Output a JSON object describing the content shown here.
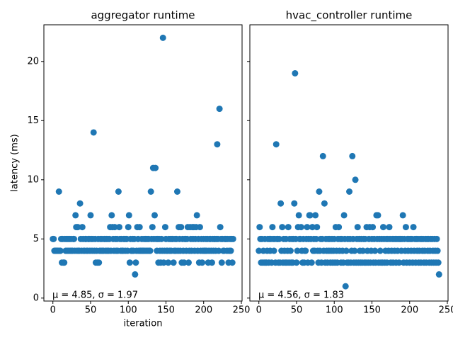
{
  "chart_data": [
    {
      "type": "scatter",
      "title": "aggregator runtime",
      "xlabel": "iteration",
      "ylabel": "latency (ms)",
      "annotation": "μ = 4.85, σ = 1.97",
      "color": "#1f77b4",
      "x": [
        0,
        1,
        2,
        3,
        4,
        5,
        6,
        7,
        8,
        9,
        10,
        11,
        12,
        13,
        14,
        15,
        16,
        17,
        18,
        19,
        20,
        21,
        22,
        23,
        24,
        25,
        26,
        27,
        28,
        29,
        30,
        31,
        32,
        33,
        34,
        35,
        36,
        37,
        38,
        39,
        40,
        41,
        42,
        43,
        44,
        45,
        46,
        47,
        48,
        49,
        50,
        51,
        52,
        53,
        54,
        55,
        56,
        57,
        58,
        59,
        60,
        61,
        62,
        63,
        64,
        65,
        66,
        67,
        68,
        69,
        70,
        71,
        72,
        73,
        74,
        75,
        76,
        77,
        78,
        79,
        80,
        81,
        82,
        83,
        84,
        85,
        86,
        87,
        88,
        89,
        90,
        91,
        92,
        93,
        94,
        95,
        96,
        97,
        98,
        99,
        100,
        101,
        102,
        103,
        104,
        105,
        106,
        107,
        108,
        109,
        110,
        111,
        112,
        113,
        114,
        115,
        116,
        117,
        118,
        119,
        120,
        121,
        122,
        123,
        124,
        125,
        126,
        127,
        128,
        129,
        130,
        131,
        132,
        133,
        134,
        135,
        136,
        137,
        138,
        139,
        140,
        141,
        142,
        143,
        144,
        145,
        146,
        147,
        148,
        149,
        150,
        151,
        152,
        153,
        154,
        155,
        156,
        157,
        158,
        159,
        160,
        161,
        162,
        163,
        164,
        165,
        166,
        167,
        168,
        169,
        170,
        171,
        172,
        173,
        174,
        175,
        176,
        177,
        178,
        179,
        180,
        181,
        182,
        183,
        184,
        185,
        186,
        187,
        188,
        189,
        190,
        191,
        192,
        193,
        194,
        195,
        196,
        197,
        198,
        199,
        200,
        201,
        202,
        203,
        204,
        205,
        206,
        207,
        208,
        209,
        210,
        211,
        212,
        213,
        214,
        215,
        216,
        217,
        218,
        219,
        220,
        221,
        222,
        223,
        224,
        225,
        226,
        227,
        228,
        229,
        230,
        231,
        232,
        233,
        234,
        235,
        236,
        237,
        238,
        239
      ],
      "values": [
        5,
        5,
        4,
        4,
        4,
        4,
        4,
        4,
        9,
        4,
        4,
        5,
        3,
        5,
        3,
        3,
        5,
        4,
        5,
        4,
        5,
        4,
        5,
        4,
        5,
        4,
        4,
        5,
        5,
        4,
        7,
        6,
        4,
        6,
        4,
        4,
        8,
        5,
        4,
        6,
        5,
        4,
        4,
        5,
        5,
        4,
        4,
        5,
        5,
        4,
        7,
        5,
        4,
        5,
        14,
        4,
        5,
        3,
        4,
        3,
        5,
        3,
        4,
        5,
        4,
        5,
        4,
        4,
        5,
        5,
        4,
        5,
        4,
        5,
        4,
        5,
        6,
        4,
        7,
        6,
        5,
        4,
        6,
        5,
        4,
        5,
        4,
        9,
        6,
        5,
        4,
        5,
        4,
        4,
        5,
        5,
        4,
        5,
        5,
        4,
        6,
        7,
        3,
        5,
        4,
        4,
        5,
        4,
        5,
        2,
        3,
        4,
        6,
        5,
        4,
        6,
        4,
        4,
        5,
        4,
        4,
        5,
        4,
        5,
        4,
        5,
        4,
        5,
        4,
        4,
        9,
        5,
        6,
        11,
        5,
        7,
        11,
        5,
        4,
        5,
        3,
        5,
        4,
        3,
        5,
        4,
        22,
        3,
        4,
        6,
        5,
        4,
        4,
        3,
        5,
        4,
        5,
        4,
        5,
        5,
        3,
        4,
        5,
        4,
        5,
        9,
        4,
        6,
        5,
        4,
        6,
        3,
        5,
        4,
        3,
        5,
        5,
        4,
        5,
        6,
        3,
        4,
        6,
        5,
        4,
        6,
        5,
        6,
        4,
        5,
        6,
        7,
        4,
        5,
        3,
        6,
        4,
        5,
        3,
        4,
        5,
        4,
        4,
        5,
        4,
        5,
        3,
        4,
        5,
        5,
        4,
        3,
        5,
        4,
        5,
        5,
        4,
        5,
        13,
        5,
        4,
        16,
        6,
        5,
        3,
        5,
        4,
        4,
        5,
        5,
        5,
        4,
        5,
        3,
        4,
        5,
        4,
        5,
        3,
        5
      ],
      "xlim": [
        -11.95,
        250.95
      ],
      "ylim": [
        -0.25,
        23.1
      ],
      "xticks": [
        0,
        50,
        100,
        150,
        200,
        250
      ],
      "yticks": [
        0,
        5,
        10,
        15,
        20
      ]
    },
    {
      "type": "scatter",
      "title": "hvac_controller runtime",
      "annotation": "μ = 4.56, σ = 1.83",
      "color": "#1f77b4",
      "x": [
        0,
        1,
        2,
        3,
        4,
        5,
        6,
        7,
        8,
        9,
        10,
        11,
        12,
        13,
        14,
        15,
        16,
        17,
        18,
        19,
        20,
        21,
        22,
        23,
        24,
        25,
        26,
        27,
        28,
        29,
        30,
        31,
        32,
        33,
        34,
        35,
        36,
        37,
        38,
        39,
        40,
        41,
        42,
        43,
        44,
        45,
        46,
        47,
        48,
        49,
        50,
        51,
        52,
        53,
        54,
        55,
        56,
        57,
        58,
        59,
        60,
        61,
        62,
        63,
        64,
        65,
        66,
        67,
        68,
        69,
        70,
        71,
        72,
        73,
        74,
        75,
        76,
        77,
        78,
        79,
        80,
        81,
        82,
        83,
        84,
        85,
        86,
        87,
        88,
        89,
        90,
        91,
        92,
        93,
        94,
        95,
        96,
        97,
        98,
        99,
        100,
        101,
        102,
        103,
        104,
        105,
        106,
        107,
        108,
        109,
        110,
        111,
        112,
        113,
        114,
        115,
        116,
        117,
        118,
        119,
        120,
        121,
        122,
        123,
        124,
        125,
        126,
        127,
        128,
        129,
        130,
        131,
        132,
        133,
        134,
        135,
        136,
        137,
        138,
        139,
        140,
        141,
        142,
        143,
        144,
        145,
        146,
        147,
        148,
        149,
        150,
        151,
        152,
        153,
        154,
        155,
        156,
        157,
        158,
        159,
        160,
        161,
        162,
        163,
        164,
        165,
        166,
        167,
        168,
        169,
        170,
        171,
        172,
        173,
        174,
        175,
        176,
        177,
        178,
        179,
        180,
        181,
        182,
        183,
        184,
        185,
        186,
        187,
        188,
        189,
        190,
        191,
        192,
        193,
        194,
        195,
        196,
        197,
        198,
        199,
        200,
        201,
        202,
        203,
        204,
        205,
        206,
        207,
        208,
        209,
        210,
        211,
        212,
        213,
        214,
        215,
        216,
        217,
        218,
        219,
        220,
        221,
        222,
        223,
        224,
        225,
        226,
        227,
        228,
        229,
        230,
        231,
        232,
        233,
        234,
        235,
        236,
        237,
        238,
        239
      ],
      "values": [
        4,
        6,
        5,
        3,
        5,
        3,
        4,
        3,
        5,
        3,
        3,
        4,
        5,
        3,
        5,
        4,
        5,
        3,
        6,
        5,
        4,
        5,
        3,
        13,
        5,
        5,
        3,
        5,
        3,
        8,
        4,
        6,
        3,
        5,
        4,
        3,
        5,
        3,
        4,
        6,
        3,
        5,
        4,
        3,
        5,
        3,
        5,
        8,
        19,
        5,
        3,
        4,
        6,
        7,
        5,
        5,
        6,
        4,
        3,
        5,
        3,
        4,
        4,
        5,
        6,
        3,
        5,
        7,
        7,
        5,
        3,
        6,
        4,
        5,
        4,
        7,
        5,
        6,
        4,
        3,
        9,
        4,
        5,
        3,
        5,
        12,
        4,
        8,
        3,
        5,
        4,
        3,
        5,
        4,
        5,
        3,
        4,
        5,
        3,
        4,
        5,
        3,
        6,
        4,
        3,
        5,
        6,
        4,
        5,
        3,
        5,
        4,
        3,
        7,
        5,
        1,
        4,
        3,
        5,
        3,
        9,
        5,
        3,
        4,
        12,
        5,
        3,
        4,
        10,
        3,
        5,
        6,
        3,
        5,
        4,
        3,
        5,
        3,
        4,
        5,
        3,
        5,
        3,
        6,
        4,
        3,
        5,
        6,
        3,
        4,
        5,
        6,
        3,
        5,
        4,
        3,
        7,
        5,
        7,
        3,
        5,
        4,
        3,
        5,
        3,
        6,
        5,
        3,
        4,
        5,
        3,
        5,
        4,
        6,
        5,
        3,
        4,
        5,
        3,
        5,
        4,
        5,
        3,
        5,
        4,
        5,
        3,
        5,
        5,
        4,
        5,
        7,
        3,
        5,
        4,
        6,
        3,
        5,
        4,
        5,
        3,
        5,
        4,
        5,
        3,
        6,
        4,
        5,
        3,
        5,
        4,
        5,
        3,
        4,
        5,
        3,
        5,
        4,
        5,
        3,
        4,
        5,
        3,
        5,
        4,
        5,
        3,
        4,
        5,
        3,
        5,
        4,
        3,
        5,
        4,
        3,
        5,
        4,
        3,
        2
      ],
      "xlim": [
        -11.95,
        250.95
      ],
      "ylim": [
        -0.25,
        23.1
      ],
      "xticks": [
        0,
        50,
        100,
        150,
        200,
        250
      ]
    }
  ]
}
